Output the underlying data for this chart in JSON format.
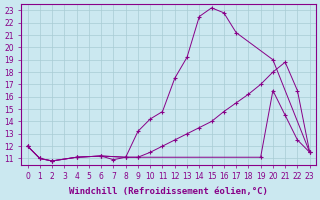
{
  "xlabel": "Windchill (Refroidissement éolien,°C)",
  "background_color": "#cbe8f0",
  "grid_color": "#a8ccd4",
  "line_color": "#880088",
  "ylim": [
    10.5,
    23.5
  ],
  "xlim": [
    -0.5,
    23.5
  ],
  "yticks": [
    11,
    12,
    13,
    14,
    15,
    16,
    17,
    18,
    19,
    20,
    21,
    22,
    23
  ],
  "xticks": [
    0,
    1,
    2,
    3,
    4,
    5,
    6,
    7,
    8,
    9,
    10,
    11,
    12,
    13,
    14,
    15,
    16,
    17,
    18,
    19,
    20,
    21,
    22,
    23
  ],
  "fontsize_xlabel": 6.5,
  "fontsize_ticks": 5.5,
  "line_top_x": [
    0,
    1,
    2,
    4,
    6,
    8,
    9,
    10,
    11,
    12,
    13,
    14,
    15,
    16,
    17,
    20,
    23
  ],
  "line_top_y": [
    12.0,
    11.0,
    10.8,
    11.1,
    11.2,
    11.1,
    13.2,
    14.2,
    14.8,
    17.5,
    19.2,
    22.5,
    23.2,
    22.8,
    21.2,
    19.0,
    11.5
  ],
  "line_mid_x": [
    0,
    1,
    2,
    4,
    6,
    8,
    9,
    10,
    11,
    12,
    13,
    14,
    15,
    16,
    17,
    18,
    19,
    20,
    21,
    22,
    23
  ],
  "line_mid_y": [
    12.0,
    11.0,
    10.8,
    11.1,
    11.2,
    11.1,
    11.1,
    11.5,
    12.0,
    12.5,
    13.0,
    13.5,
    14.0,
    14.8,
    15.5,
    16.2,
    17.0,
    18.0,
    18.8,
    16.5,
    11.5
  ],
  "line_bot_x": [
    0,
    1,
    2,
    4,
    6,
    7,
    8,
    9,
    19,
    20,
    21,
    22,
    23
  ],
  "line_bot_y": [
    12.0,
    11.0,
    10.8,
    11.1,
    11.2,
    10.9,
    11.1,
    11.1,
    11.1,
    16.5,
    14.5,
    12.5,
    11.5
  ]
}
